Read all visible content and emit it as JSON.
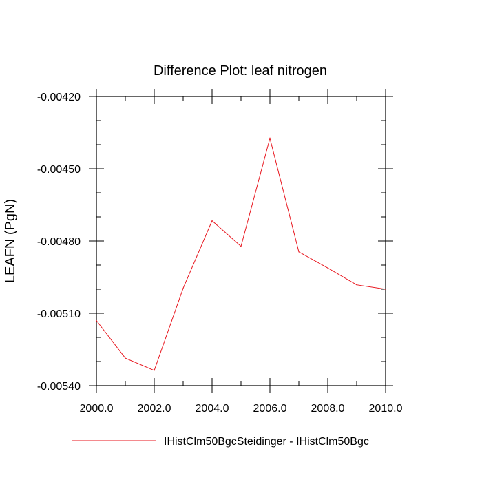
{
  "chart_data": {
    "type": "line",
    "title": "Difference Plot: leaf nitrogen",
    "xlabel": "",
    "ylabel": "LEAFN  (PgN)",
    "xlim": [
      2000,
      2010
    ],
    "ylim": [
      -0.0054,
      -0.0042
    ],
    "x_ticks": [
      2000,
      2002,
      2004,
      2006,
      2008,
      2010
    ],
    "x_tick_labels": [
      "2000.0",
      "2002.0",
      "2004.0",
      "2006.0",
      "2008.0",
      "2010.0"
    ],
    "y_ticks": [
      -0.0054,
      -0.0051,
      -0.0048,
      -0.0045,
      -0.0042
    ],
    "y_tick_labels": [
      "-0.00540",
      "-0.00510",
      "-0.00480",
      "-0.00450",
      "-0.00420"
    ],
    "grid": false,
    "legend_position": "bottom",
    "series": [
      {
        "name": "IHistClm50BgcSteidinger - IHistClm50Bgc",
        "color": "#e8161e",
        "x": [
          2000,
          2001,
          2002,
          2003,
          2004,
          2005,
          2006,
          2007,
          2008,
          2009,
          2010
        ],
        "y": [
          -0.00513,
          -0.005286,
          -0.005337,
          -0.004996,
          -0.004716,
          -0.004822,
          -0.004374,
          -0.004845,
          -0.004912,
          -0.004982,
          -0.005
        ]
      }
    ]
  }
}
